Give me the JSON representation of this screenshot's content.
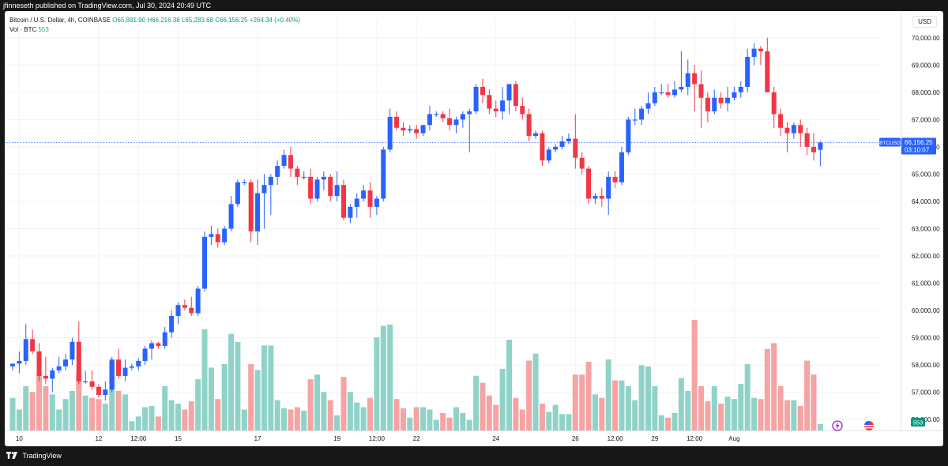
{
  "header": {
    "publisher_line": "jfinneseth published on TradingView.com, Jul 30, 2024 20:49 UTC"
  },
  "legend": {
    "symbol_line": "Bitcoin / U.S. Dollar, 4h, COINBASE",
    "ohlc": {
      "o": "O65,891.90",
      "h": "H66,216.38",
      "l": "L65,283.68",
      "c": "C66,156.25",
      "chg": "+264.34 (+0.40%)"
    },
    "vol_label": "Vol · BTC",
    "vol_value": "553"
  },
  "currency_label": "USD",
  "price_tag": {
    "symbol": "BTCUSD",
    "price": "66,156.25",
    "countdown": "03:10:07",
    "price_value": 66156.25
  },
  "volume_tag": "553",
  "footer": {
    "brand": "TradingView"
  },
  "colors": {
    "up": "#2962ff",
    "down": "#f23645",
    "vol_up": "#8fd3c8",
    "vol_down": "#f5a3a3"
  },
  "chart_data": {
    "type": "candlestick",
    "title": "",
    "y_axis": {
      "min": 55600,
      "max": 70400,
      "ticks": [
        56000,
        57000,
        58000,
        59000,
        60000,
        61000,
        62000,
        63000,
        64000,
        65000,
        66000,
        67000,
        68000,
        69000,
        70000
      ],
      "tick_labels": [
        "56,000.00",
        "57,000.00",
        "58,000.00",
        "59,000.00",
        "60,000.00",
        "61,000.00",
        "62,000.00",
        "63,000.00",
        "64,000.00",
        "65,000.00",
        "66,000.00",
        "67,000.00",
        "68,000.00",
        "69,000.00",
        "70,000.00"
      ]
    },
    "x_axis": {
      "ticks": [
        {
          "index": 1,
          "label": "10"
        },
        {
          "index": 13,
          "label": "12"
        },
        {
          "index": 19,
          "label": "12:00"
        },
        {
          "index": 25,
          "label": "15"
        },
        {
          "index": 37,
          "label": "17"
        },
        {
          "index": 49,
          "label": "19"
        },
        {
          "index": 55,
          "label": "12:00"
        },
        {
          "index": 61,
          "label": "22"
        },
        {
          "index": 73,
          "label": "24"
        },
        {
          "index": 85,
          "label": "26"
        },
        {
          "index": 91,
          "label": "12:00"
        },
        {
          "index": 97,
          "label": "29"
        },
        {
          "index": 103,
          "label": "12:00"
        },
        {
          "index": 109,
          "label": "Aug"
        }
      ]
    },
    "grid": true,
    "volume_max": 9500,
    "candles": [
      {
        "o": 57950,
        "h": 58050,
        "l": 57800,
        "c": 58050,
        "v": 2800
      },
      {
        "o": 58050,
        "h": 58500,
        "l": 57700,
        "c": 58150,
        "v": 1800
      },
      {
        "o": 58150,
        "h": 59500,
        "l": 58000,
        "c": 58950,
        "v": 3800
      },
      {
        "o": 58950,
        "h": 59300,
        "l": 58400,
        "c": 58500,
        "v": 3300
      },
      {
        "o": 58500,
        "h": 58800,
        "l": 57400,
        "c": 57600,
        "v": 4800
      },
      {
        "o": 57600,
        "h": 58300,
        "l": 57300,
        "c": 57500,
        "v": 3800
      },
      {
        "o": 57500,
        "h": 57900,
        "l": 57000,
        "c": 57800,
        "v": 3100
      },
      {
        "o": 57800,
        "h": 58300,
        "l": 57700,
        "c": 57950,
        "v": 1800
      },
      {
        "o": 57950,
        "h": 58400,
        "l": 57800,
        "c": 58200,
        "v": 2700
      },
      {
        "o": 58200,
        "h": 59000,
        "l": 58000,
        "c": 58850,
        "v": 3400
      },
      {
        "o": 58850,
        "h": 59600,
        "l": 57300,
        "c": 57400,
        "v": 5000
      },
      {
        "o": 57400,
        "h": 57800,
        "l": 57300,
        "c": 57400,
        "v": 3000
      },
      {
        "o": 57400,
        "h": 57800,
        "l": 57100,
        "c": 57200,
        "v": 2800
      },
      {
        "o": 57200,
        "h": 57300,
        "l": 56800,
        "c": 56900,
        "v": 2700
      },
      {
        "o": 56900,
        "h": 57400,
        "l": 56700,
        "c": 57100,
        "v": 2300
      },
      {
        "o": 57100,
        "h": 58300,
        "l": 57000,
        "c": 58200,
        "v": 5900
      },
      {
        "o": 58200,
        "h": 58600,
        "l": 57500,
        "c": 57600,
        "v": 3400
      },
      {
        "o": 57600,
        "h": 58200,
        "l": 57400,
        "c": 57900,
        "v": 3100
      },
      {
        "o": 57900,
        "h": 58050,
        "l": 57800,
        "c": 57950,
        "v": 800
      },
      {
        "o": 57950,
        "h": 58250,
        "l": 57800,
        "c": 58150,
        "v": 1200
      },
      {
        "o": 58150,
        "h": 58700,
        "l": 58000,
        "c": 58600,
        "v": 2000
      },
      {
        "o": 58600,
        "h": 58900,
        "l": 58200,
        "c": 58800,
        "v": 2100
      },
      {
        "o": 58800,
        "h": 58850,
        "l": 58600,
        "c": 58700,
        "v": 1200
      },
      {
        "o": 58700,
        "h": 59400,
        "l": 58600,
        "c": 59200,
        "v": 3800
      },
      {
        "o": 59200,
        "h": 60000,
        "l": 59000,
        "c": 59800,
        "v": 2600
      },
      {
        "o": 59800,
        "h": 60300,
        "l": 59500,
        "c": 60200,
        "v": 2300
      },
      {
        "o": 60200,
        "h": 60400,
        "l": 60000,
        "c": 60100,
        "v": 1800
      },
      {
        "o": 60100,
        "h": 60500,
        "l": 59800,
        "c": 59900,
        "v": 2500
      },
      {
        "o": 59900,
        "h": 60900,
        "l": 59800,
        "c": 60800,
        "v": 4400
      },
      {
        "o": 60800,
        "h": 62900,
        "l": 60700,
        "c": 62700,
        "v": 8700
      },
      {
        "o": 62700,
        "h": 63100,
        "l": 62400,
        "c": 62800,
        "v": 5400
      },
      {
        "o": 62800,
        "h": 63000,
        "l": 62300,
        "c": 62500,
        "v": 2700
      },
      {
        "o": 62500,
        "h": 63100,
        "l": 62400,
        "c": 63000,
        "v": 5700
      },
      {
        "o": 63000,
        "h": 64200,
        "l": 62900,
        "c": 63900,
        "v": 8300
      },
      {
        "o": 63900,
        "h": 64800,
        "l": 63800,
        "c": 64700,
        "v": 7600
      },
      {
        "o": 64700,
        "h": 64800,
        "l": 64600,
        "c": 64700,
        "v": 1800
      },
      {
        "o": 64700,
        "h": 64800,
        "l": 62500,
        "c": 62900,
        "v": 5700
      },
      {
        "o": 62900,
        "h": 64800,
        "l": 62400,
        "c": 64300,
        "v": 5200
      },
      {
        "o": 64300,
        "h": 65000,
        "l": 63000,
        "c": 64600,
        "v": 7300
      },
      {
        "o": 64600,
        "h": 65000,
        "l": 63500,
        "c": 64900,
        "v": 7300
      },
      {
        "o": 64900,
        "h": 65500,
        "l": 64600,
        "c": 65300,
        "v": 2600
      },
      {
        "o": 65300,
        "h": 65900,
        "l": 65200,
        "c": 65700,
        "v": 1900
      },
      {
        "o": 65700,
        "h": 66000,
        "l": 64900,
        "c": 65200,
        "v": 1800
      },
      {
        "o": 65200,
        "h": 65300,
        "l": 64600,
        "c": 64900,
        "v": 2000
      },
      {
        "o": 64900,
        "h": 65100,
        "l": 64800,
        "c": 64900,
        "v": 1700
      },
      {
        "o": 64900,
        "h": 65200,
        "l": 63900,
        "c": 64100,
        "v": 4400
      },
      {
        "o": 64100,
        "h": 64900,
        "l": 64000,
        "c": 64800,
        "v": 4800
      },
      {
        "o": 64800,
        "h": 65100,
        "l": 64400,
        "c": 64900,
        "v": 3300
      },
      {
        "o": 64900,
        "h": 65000,
        "l": 64000,
        "c": 64200,
        "v": 2600
      },
      {
        "o": 64200,
        "h": 65100,
        "l": 64000,
        "c": 64600,
        "v": 1300
      },
      {
        "o": 64600,
        "h": 64800,
        "l": 63300,
        "c": 63400,
        "v": 4600
      },
      {
        "o": 63400,
        "h": 63900,
        "l": 63200,
        "c": 63800,
        "v": 3300
      },
      {
        "o": 63800,
        "h": 64300,
        "l": 63400,
        "c": 64100,
        "v": 2400
      },
      {
        "o": 64100,
        "h": 64600,
        "l": 64000,
        "c": 64400,
        "v": 2000
      },
      {
        "o": 64400,
        "h": 64700,
        "l": 63400,
        "c": 63800,
        "v": 2800
      },
      {
        "o": 63800,
        "h": 64200,
        "l": 63500,
        "c": 64100,
        "v": 8000
      },
      {
        "o": 64100,
        "h": 66000,
        "l": 64000,
        "c": 65900,
        "v": 9000
      },
      {
        "o": 65900,
        "h": 67400,
        "l": 65800,
        "c": 67100,
        "v": 9100
      },
      {
        "o": 67100,
        "h": 67300,
        "l": 66600,
        "c": 66700,
        "v": 2700
      },
      {
        "o": 66700,
        "h": 66900,
        "l": 66400,
        "c": 66600,
        "v": 1900
      },
      {
        "o": 66600,
        "h": 66800,
        "l": 66500,
        "c": 66650,
        "v": 1100
      },
      {
        "o": 66650,
        "h": 66800,
        "l": 66300,
        "c": 66500,
        "v": 2000
      },
      {
        "o": 66500,
        "h": 66800,
        "l": 66400,
        "c": 66800,
        "v": 2000
      },
      {
        "o": 66800,
        "h": 67500,
        "l": 66600,
        "c": 67200,
        "v": 1800
      },
      {
        "o": 67200,
        "h": 67300,
        "l": 67100,
        "c": 67200,
        "v": 900
      },
      {
        "o": 67200,
        "h": 67300,
        "l": 66900,
        "c": 67050,
        "v": 1500
      },
      {
        "o": 67050,
        "h": 67400,
        "l": 66600,
        "c": 66800,
        "v": 1100
      },
      {
        "o": 66800,
        "h": 67100,
        "l": 66500,
        "c": 67000,
        "v": 2000
      },
      {
        "o": 67000,
        "h": 67300,
        "l": 66700,
        "c": 67200,
        "v": 1500
      },
      {
        "o": 67200,
        "h": 67400,
        "l": 65800,
        "c": 67300,
        "v": 900
      },
      {
        "o": 67300,
        "h": 68300,
        "l": 67200,
        "c": 68200,
        "v": 4700
      },
      {
        "o": 68200,
        "h": 68500,
        "l": 67600,
        "c": 67900,
        "v": 4100
      },
      {
        "o": 67900,
        "h": 68100,
        "l": 67200,
        "c": 67400,
        "v": 3000
      },
      {
        "o": 67400,
        "h": 67700,
        "l": 67100,
        "c": 67300,
        "v": 2200
      },
      {
        "o": 67300,
        "h": 68200,
        "l": 67000,
        "c": 67700,
        "v": 5300
      },
      {
        "o": 67700,
        "h": 68300,
        "l": 67200,
        "c": 68300,
        "v": 7800
      },
      {
        "o": 68300,
        "h": 68400,
        "l": 67300,
        "c": 67500,
        "v": 2800
      },
      {
        "o": 67500,
        "h": 67800,
        "l": 67000,
        "c": 67200,
        "v": 1800
      },
      {
        "o": 67200,
        "h": 67400,
        "l": 66200,
        "c": 66400,
        "v": 6000
      },
      {
        "o": 66400,
        "h": 66600,
        "l": 66300,
        "c": 66500,
        "v": 6600
      },
      {
        "o": 66500,
        "h": 66600,
        "l": 65300,
        "c": 65500,
        "v": 2300
      },
      {
        "o": 65500,
        "h": 66000,
        "l": 65400,
        "c": 65900,
        "v": 1600
      },
      {
        "o": 65900,
        "h": 66100,
        "l": 65800,
        "c": 66000,
        "v": 2200
      },
      {
        "o": 66000,
        "h": 66400,
        "l": 65900,
        "c": 66200,
        "v": 1400
      },
      {
        "o": 66200,
        "h": 66500,
        "l": 66100,
        "c": 66300,
        "v": 1400
      },
      {
        "o": 66300,
        "h": 67200,
        "l": 65200,
        "c": 65600,
        "v": 4800
      },
      {
        "o": 65600,
        "h": 65800,
        "l": 65000,
        "c": 65200,
        "v": 4800
      },
      {
        "o": 65200,
        "h": 65300,
        "l": 63900,
        "c": 64100,
        "v": 5900
      },
      {
        "o": 64100,
        "h": 64300,
        "l": 63900,
        "c": 64200,
        "v": 3100
      },
      {
        "o": 64200,
        "h": 64500,
        "l": 63800,
        "c": 64100,
        "v": 2800
      },
      {
        "o": 64100,
        "h": 65100,
        "l": 63500,
        "c": 64900,
        "v": 6100
      },
      {
        "o": 64900,
        "h": 65100,
        "l": 64500,
        "c": 64700,
        "v": 4300
      },
      {
        "o": 64700,
        "h": 66000,
        "l": 64600,
        "c": 65800,
        "v": 4300
      },
      {
        "o": 65800,
        "h": 67100,
        "l": 65700,
        "c": 67000,
        "v": 3800
      },
      {
        "o": 67000,
        "h": 67400,
        "l": 66800,
        "c": 67000,
        "v": 2600
      },
      {
        "o": 67000,
        "h": 67500,
        "l": 66800,
        "c": 67400,
        "v": 5600
      },
      {
        "o": 67400,
        "h": 68000,
        "l": 67200,
        "c": 67600,
        "v": 5500
      },
      {
        "o": 67600,
        "h": 68200,
        "l": 67500,
        "c": 68000,
        "v": 3800
      },
      {
        "o": 68000,
        "h": 68300,
        "l": 67900,
        "c": 68000,
        "v": 1300
      },
      {
        "o": 68000,
        "h": 68300,
        "l": 67800,
        "c": 67900,
        "v": 1100
      },
      {
        "o": 67900,
        "h": 68400,
        "l": 67800,
        "c": 68100,
        "v": 1500
      },
      {
        "o": 68100,
        "h": 69500,
        "l": 68000,
        "c": 68200,
        "v": 4500
      },
      {
        "o": 68200,
        "h": 69200,
        "l": 67900,
        "c": 68700,
        "v": 3400
      },
      {
        "o": 68700,
        "h": 69000,
        "l": 67300,
        "c": 68300,
        "v": 9500
      },
      {
        "o": 68300,
        "h": 68800,
        "l": 66700,
        "c": 67800,
        "v": 3800
      },
      {
        "o": 67800,
        "h": 68000,
        "l": 66900,
        "c": 67300,
        "v": 2500
      },
      {
        "o": 67300,
        "h": 68100,
        "l": 67200,
        "c": 67800,
        "v": 3800
      },
      {
        "o": 67800,
        "h": 68000,
        "l": 67400,
        "c": 67600,
        "v": 2300
      },
      {
        "o": 67600,
        "h": 68200,
        "l": 67300,
        "c": 67800,
        "v": 2900
      },
      {
        "o": 67800,
        "h": 68200,
        "l": 67700,
        "c": 68000,
        "v": 2700
      },
      {
        "o": 68000,
        "h": 68400,
        "l": 67800,
        "c": 68200,
        "v": 4000
      },
      {
        "o": 68200,
        "h": 69600,
        "l": 68000,
        "c": 69300,
        "v": 5700
      },
      {
        "o": 69300,
        "h": 69800,
        "l": 69000,
        "c": 69600,
        "v": 2800
      },
      {
        "o": 69600,
        "h": 69700,
        "l": 69000,
        "c": 69500,
        "v": 2700
      },
      {
        "o": 69500,
        "h": 70000,
        "l": 68000,
        "c": 68000,
        "v": 7000
      },
      {
        "o": 68000,
        "h": 68200,
        "l": 66700,
        "c": 67200,
        "v": 7500
      },
      {
        "o": 67200,
        "h": 67400,
        "l": 66400,
        "c": 66700,
        "v": 3800
      },
      {
        "o": 66700,
        "h": 66900,
        "l": 65800,
        "c": 66500,
        "v": 2600
      },
      {
        "o": 66500,
        "h": 66900,
        "l": 66300,
        "c": 66800,
        "v": 2600
      },
      {
        "o": 66800,
        "h": 67000,
        "l": 66000,
        "c": 66500,
        "v": 2100
      },
      {
        "o": 66500,
        "h": 66700,
        "l": 65700,
        "c": 66000,
        "v": 6000
      },
      {
        "o": 66000,
        "h": 66500,
        "l": 65500,
        "c": 65800,
        "v": 4800
      },
      {
        "o": 65891.9,
        "h": 66216.38,
        "l": 65283.68,
        "c": 66156.25,
        "v": 553
      }
    ]
  }
}
